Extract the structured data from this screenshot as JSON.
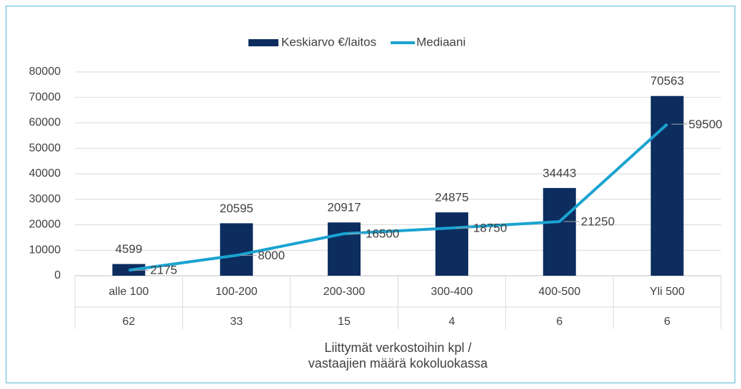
{
  "chart_data": {
    "type": "bar_line",
    "categories": [
      "alle 100",
      "100-200",
      "200-300",
      "300-400",
      "400-500",
      "Yli 500"
    ],
    "category_counts": [
      62,
      33,
      15,
      4,
      6,
      6
    ],
    "xlabel": [
      "Liittymät verkostoihin kpl /",
      "vastaajien määrä kokoluokassa"
    ],
    "series": [
      {
        "name": "Keskiarvo €/laitos",
        "type": "bar",
        "color": "#0c2d5e",
        "values": [
          4599,
          20595,
          20917,
          24875,
          34443,
          70563
        ]
      },
      {
        "name": "Mediaani",
        "type": "line",
        "color": "#1aa3d1",
        "values": [
          2175,
          8000,
          16500,
          18750,
          21250,
          59500
        ]
      }
    ],
    "ylim": [
      0,
      80000
    ],
    "yticks": [
      0,
      10000,
      20000,
      30000,
      40000,
      50000,
      60000,
      70000,
      80000
    ],
    "grid": true,
    "legend": "top"
  }
}
